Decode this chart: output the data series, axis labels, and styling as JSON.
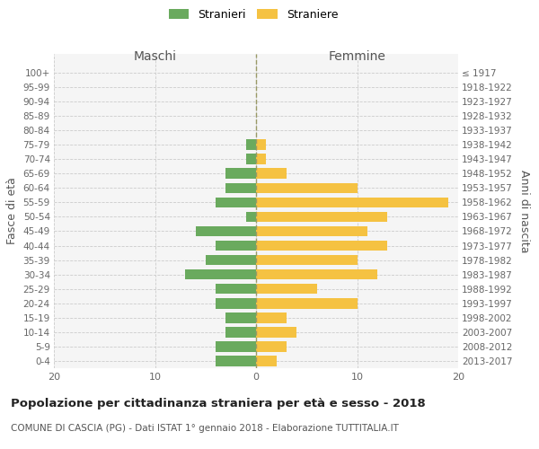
{
  "age_groups": [
    "0-4",
    "5-9",
    "10-14",
    "15-19",
    "20-24",
    "25-29",
    "30-34",
    "35-39",
    "40-44",
    "45-49",
    "50-54",
    "55-59",
    "60-64",
    "65-69",
    "70-74",
    "75-79",
    "80-84",
    "85-89",
    "90-94",
    "95-99",
    "100+"
  ],
  "birth_years": [
    "2013-2017",
    "2008-2012",
    "2003-2007",
    "1998-2002",
    "1993-1997",
    "1988-1992",
    "1983-1987",
    "1978-1982",
    "1973-1977",
    "1968-1972",
    "1963-1967",
    "1958-1962",
    "1953-1957",
    "1948-1952",
    "1943-1947",
    "1938-1942",
    "1933-1937",
    "1928-1932",
    "1923-1927",
    "1918-1922",
    "≤ 1917"
  ],
  "males": [
    4,
    4,
    3,
    3,
    4,
    4,
    7,
    5,
    4,
    6,
    1,
    4,
    3,
    3,
    1,
    1,
    0,
    0,
    0,
    0,
    0
  ],
  "females": [
    2,
    3,
    4,
    3,
    10,
    6,
    12,
    10,
    13,
    11,
    13,
    19,
    10,
    3,
    1,
    1,
    0,
    0,
    0,
    0,
    0
  ],
  "male_color": "#6aaa5e",
  "female_color": "#f5c242",
  "background_color": "#f5f5f5",
  "grid_color": "#cccccc",
  "title": "Popolazione per cittadinanza straniera per età e sesso - 2018",
  "subtitle": "COMUNE DI CASCIA (PG) - Dati ISTAT 1° gennaio 2018 - Elaborazione TUTTITALIA.IT",
  "xlabel_left": "Maschi",
  "xlabel_right": "Femmine",
  "ylabel_left": "Fasce di età",
  "ylabel_right": "Anni di nascita",
  "xlim": 20,
  "legend_stranieri": "Stranieri",
  "legend_straniere": "Straniere"
}
